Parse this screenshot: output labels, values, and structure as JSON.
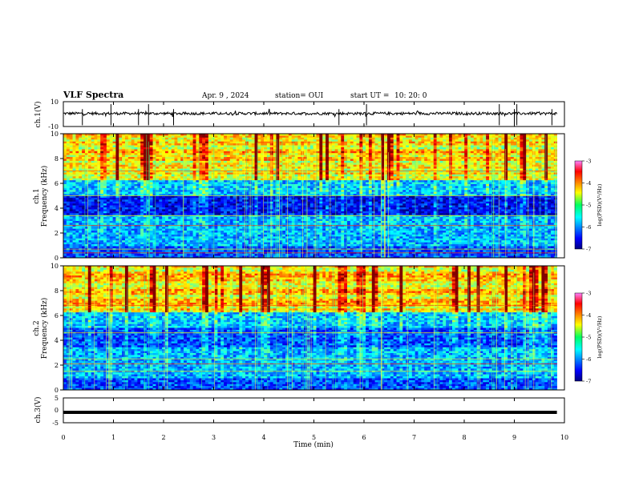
{
  "header": {
    "title": "VLF Spectra",
    "date": "Apr. 9 , 2024",
    "station": "station= OUI",
    "start": "start UT =",
    "start_time": "10: 20: 0"
  },
  "chart_data": [
    {
      "type": "line",
      "panel": "waveform-ch1",
      "ylabel": "ch.1(V)",
      "ylim": [
        -10,
        10
      ],
      "yticks": [
        10,
        -10
      ],
      "x_range_min": [
        0,
        9.85
      ],
      "series": [
        {
          "values_note": "",
          "level": 0.5
        }
      ]
    },
    {
      "type": "heatmap",
      "panel": "spectrogram-ch1",
      "ylabel": "ch.1\nFrequency (kHz)",
      "ylabel_lines": [
        "ch.1",
        "Frequency (kHz)"
      ],
      "ylim": [
        0,
        10
      ],
      "yticks": [
        0,
        2,
        4,
        6,
        8,
        10
      ],
      "colorbar": {
        "label": "log(PSD)(V²/Hz)",
        "range": [
          -7,
          -3
        ],
        "ticks": [
          "-3",
          "-4",
          "-5",
          "-6",
          "-7"
        ]
      }
    },
    {
      "type": "heatmap",
      "panel": "spectrogram-ch2",
      "ylabel": "ch.2\nFrequency (kHz)",
      "ylabel_lines": [
        "ch.2",
        "Frequency (kHz)"
      ],
      "ylim": [
        0,
        10
      ],
      "yticks": [
        0,
        2,
        4,
        6,
        8,
        10
      ],
      "colorbar": {
        "label": "log(PSD)(V²/Hz)",
        "range": [
          -7,
          -3
        ],
        "ticks": [
          "-3",
          "-4",
          "-5",
          "-6",
          "-7"
        ]
      }
    },
    {
      "type": "line",
      "panel": "waveform-ch3",
      "ylabel": "ch.3(V)",
      "ylim": [
        -5,
        5
      ],
      "yticks": [
        5,
        0,
        -5
      ],
      "series": [
        {
          "level": -0.8
        }
      ]
    }
  ],
  "x_axis": {
    "label": "Time (min)",
    "range": [
      0,
      10
    ],
    "ticks": [
      "0",
      "1",
      "2",
      "3",
      "4",
      "5",
      "6",
      "7",
      "8",
      "9",
      "10"
    ]
  }
}
